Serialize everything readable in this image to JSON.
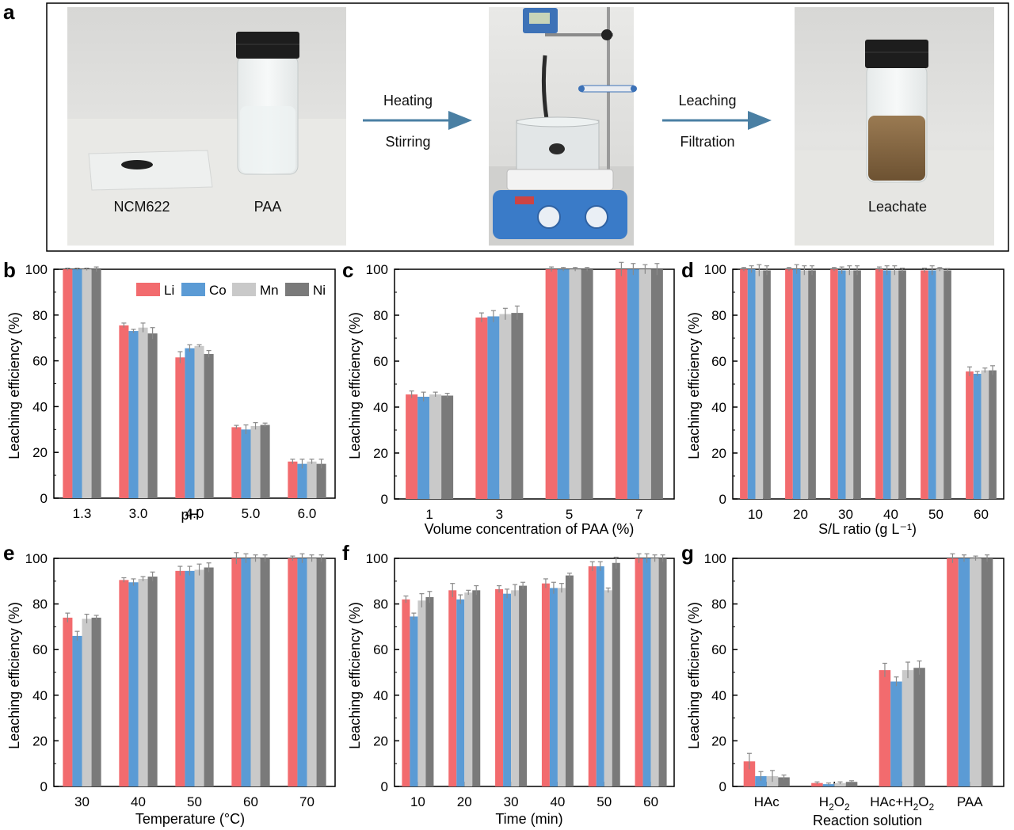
{
  "colors": {
    "Li": "#f26b6e",
    "Co": "#5b9bd5",
    "Mn": "#c9c9c9",
    "Ni": "#7a7a7a",
    "arrow": "#4a7fa3"
  },
  "panel_a": {
    "label": "a",
    "photo1_labels": [
      "NCM622",
      "PAA"
    ],
    "arrow1_top": "Heating",
    "arrow1_bottom": "Stirring",
    "arrow2_top": "Leaching",
    "arrow2_bottom": "Filtration",
    "photo3_label": "Leachate"
  },
  "chart_data": [
    {
      "id": "b",
      "type": "bar",
      "label": "b",
      "categories": [
        "1.3",
        "3.0",
        "4.0",
        "5.0",
        "6.0"
      ],
      "xlabel": "pH",
      "ylabel": "Leaching efficiency (%)",
      "ylim": [
        0,
        100
      ],
      "yticks": [
        "0",
        "20",
        "40",
        "60",
        "80",
        "100"
      ],
      "legend": [
        "Li",
        "Co",
        "Mn",
        "Ni"
      ],
      "legend_position": "top-right",
      "series": [
        {
          "name": "Li",
          "values": [
            100,
            75.5,
            61.5,
            31,
            16
          ],
          "errors": [
            0.5,
            1,
            2.5,
            0.8,
            1
          ]
        },
        {
          "name": "Co",
          "values": [
            100,
            73,
            65.5,
            30,
            15
          ],
          "errors": [
            0.5,
            0.8,
            1.5,
            2,
            2
          ]
        },
        {
          "name": "Mn",
          "values": [
            100,
            74.5,
            66.5,
            31.5,
            16
          ],
          "errors": [
            0.5,
            2,
            0.5,
            1.5,
            1
          ]
        },
        {
          "name": "Ni",
          "values": [
            100,
            72,
            63,
            32,
            15
          ],
          "errors": [
            1,
            2.5,
            1.5,
            0.8,
            2
          ]
        }
      ]
    },
    {
      "id": "c",
      "type": "bar",
      "label": "c",
      "categories": [
        "1",
        "3",
        "5",
        "7"
      ],
      "xlabel": "Volume concentration of PAA (%)",
      "ylabel": "Leaching efficiency (%)",
      "ylim": [
        0,
        100
      ],
      "yticks": [
        "0",
        "20",
        "40",
        "60",
        "80",
        "100"
      ],
      "series": [
        {
          "name": "Li",
          "values": [
            45.5,
            79,
            100,
            100
          ],
          "errors": [
            1.5,
            2,
            1,
            3
          ]
        },
        {
          "name": "Co",
          "values": [
            44.5,
            79.5,
            100,
            100
          ],
          "errors": [
            2,
            2.5,
            0.8,
            2.5
          ]
        },
        {
          "name": "Mn",
          "values": [
            45.5,
            80.5,
            100,
            100
          ],
          "errors": [
            1,
            2.5,
            0.8,
            2
          ]
        },
        {
          "name": "Ni",
          "values": [
            45,
            81,
            100,
            100
          ],
          "errors": [
            1,
            3,
            0.8,
            2.5
          ]
        }
      ]
    },
    {
      "id": "d",
      "type": "bar",
      "label": "d",
      "categories": [
        "10",
        "20",
        "30",
        "40",
        "50",
        "60"
      ],
      "xlabel": "S/L ratio (g L⁻¹)",
      "ylabel": "Leaching efficiency (%)",
      "ylim": [
        0,
        100
      ],
      "yticks": [
        "0",
        "20",
        "40",
        "60",
        "80",
        "100"
      ],
      "series": [
        {
          "name": "Li",
          "values": [
            100,
            100,
            100,
            100,
            99.5,
            55.5
          ],
          "errors": [
            0.8,
            0.8,
            0.8,
            1,
            1,
            2
          ]
        },
        {
          "name": "Co",
          "values": [
            100,
            100,
            99.5,
            99.5,
            99.5,
            54.5
          ],
          "errors": [
            1.5,
            2,
            1.5,
            2,
            2,
            1
          ]
        },
        {
          "name": "Mn",
          "values": [
            99.5,
            99.5,
            99.5,
            99.5,
            100,
            56
          ],
          "errors": [
            2.5,
            2,
            2,
            2,
            0.8,
            1
          ]
        },
        {
          "name": "Ni",
          "values": [
            99.5,
            99.5,
            99.5,
            99.5,
            99.5,
            56
          ],
          "errors": [
            2,
            2,
            2,
            1,
            0.8,
            2
          ]
        }
      ]
    },
    {
      "id": "e",
      "type": "bar",
      "label": "e",
      "categories": [
        "30",
        "40",
        "50",
        "60",
        "70"
      ],
      "xlabel": "Temperature (°C)",
      "ylabel": "Leaching efficiency (%)",
      "ylim": [
        0,
        100
      ],
      "yticks": [
        "0",
        "20",
        "40",
        "60",
        "80",
        "100"
      ],
      "series": [
        {
          "name": "Li",
          "values": [
            74,
            90.5,
            94.5,
            100,
            100
          ],
          "errors": [
            2,
            1,
            2,
            2.5,
            1
          ]
        },
        {
          "name": "Co",
          "values": [
            66,
            89.5,
            94.5,
            100,
            100
          ],
          "errors": [
            2,
            1.5,
            2,
            2,
            2
          ]
        },
        {
          "name": "Mn",
          "values": [
            73.5,
            91,
            95,
            100,
            100
          ],
          "errors": [
            2,
            1,
            2.5,
            1.5,
            1.5
          ]
        },
        {
          "name": "Ni",
          "values": [
            74,
            92,
            96,
            100,
            100
          ],
          "errors": [
            1,
            2,
            2,
            1.5,
            1.5
          ]
        }
      ]
    },
    {
      "id": "f",
      "type": "bar",
      "label": "f",
      "categories": [
        "10",
        "20",
        "30",
        "40",
        "50",
        "60"
      ],
      "xlabel": "Time (min)",
      "ylabel": "Leaching efficiency (%)",
      "ylim": [
        0,
        100
      ],
      "yticks": [
        "0",
        "20",
        "40",
        "60",
        "80",
        "100"
      ],
      "series": [
        {
          "name": "Li",
          "values": [
            82,
            86,
            86.5,
            89,
            96.5,
            100
          ],
          "errors": [
            1.5,
            3,
            1.5,
            2,
            2,
            2
          ]
        },
        {
          "name": "Co",
          "values": [
            74.5,
            82,
            84.5,
            87,
            96.5,
            100
          ],
          "errors": [
            1.5,
            2,
            2,
            2.5,
            2,
            2
          ]
        },
        {
          "name": "Mn",
          "values": [
            81.5,
            85,
            86,
            87,
            86,
            100
          ],
          "errors": [
            3,
            1,
            2.5,
            2,
            1,
            1.5
          ]
        },
        {
          "name": "Ni",
          "values": [
            83,
            86,
            88,
            92.5,
            98,
            100
          ],
          "errors": [
            2.5,
            2,
            1.5,
            1,
            2.5,
            1.5
          ]
        }
      ]
    },
    {
      "id": "g",
      "type": "bar",
      "label": "g",
      "categories": [
        "HAc",
        "H2O2",
        "HAc+H2O2",
        "PAA"
      ],
      "xlabel": "Reaction solution",
      "ylabel": "Leaching efficiency (%)",
      "ylim": [
        0,
        100
      ],
      "yticks": [
        "0",
        "20",
        "40",
        "60",
        "80",
        "100"
      ],
      "series": [
        {
          "name": "Li",
          "values": [
            11,
            1.5,
            51,
            100
          ],
          "errors": [
            3.5,
            0.5,
            3,
            2
          ]
        },
        {
          "name": "Co",
          "values": [
            4.5,
            1,
            46,
            100
          ],
          "errors": [
            2,
            0.5,
            2,
            1.5
          ]
        },
        {
          "name": "Mn",
          "values": [
            4.5,
            1.5,
            51,
            100
          ],
          "errors": [
            2.5,
            0.5,
            3.5,
            1
          ]
        },
        {
          "name": "Ni",
          "values": [
            4,
            2,
            52,
            100
          ],
          "errors": [
            1,
            0.5,
            3,
            1.5
          ]
        }
      ]
    }
  ]
}
